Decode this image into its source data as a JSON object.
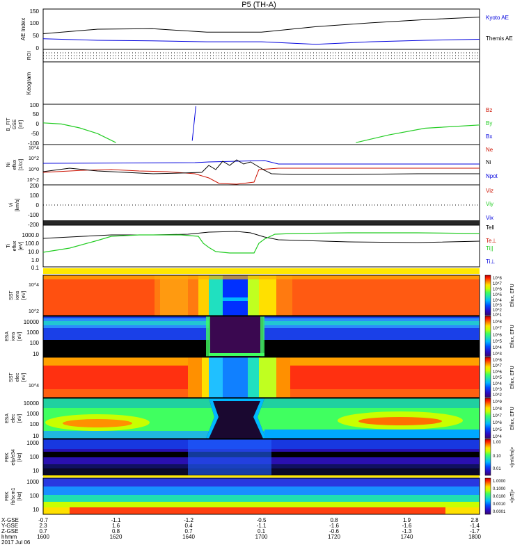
{
  "title": "P5 (TH-A)",
  "colors": {
    "black": "#000000",
    "blue": "#0000dd",
    "red": "#cc1100",
    "green": "#22cc22",
    "cbar": [
      "#3b0a6b",
      "#2a0cc9",
      "#0050ff",
      "#00b8ff",
      "#20e0b0",
      "#40ff60",
      "#c8ff00",
      "#ffe000",
      "#ff8000",
      "#ff2000",
      "#c00000"
    ]
  },
  "panels": {
    "ae": {
      "ylabel": "AE Index",
      "ticks": [
        "150",
        "100",
        "50",
        "0"
      ],
      "legend": [
        "Kyoto AE",
        "Themis AE"
      ]
    },
    "roi": {
      "ylabel": "ROI"
    },
    "keogram": {
      "ylabel": "Keogram"
    },
    "bfit": {
      "ylabel": [
        "B_FIT",
        "GSE",
        "[nT]"
      ],
      "ticks": [
        "100",
        "50",
        "0",
        "-50",
        "-100"
      ],
      "legend": [
        "Bz",
        "By",
        "Bx"
      ]
    },
    "density": {
      "ylabel": [
        "Ni",
        "eflux",
        "[1/cc]"
      ],
      "ticks": [
        "10^4",
        "10^2",
        "10^0",
        "10^-2"
      ],
      "legend": [
        "Ne",
        "Ni",
        "Npot"
      ]
    },
    "velocity": {
      "ylabel": [
        "Vi",
        "[km/s]"
      ],
      "ticks": [
        "200",
        "100",
        "0",
        "-100",
        "-200"
      ],
      "legend": [
        "Viz",
        "Viy",
        "Vix"
      ]
    },
    "temperature": {
      "ylabel": [
        "Ti",
        "eflux",
        "[eV]"
      ],
      "ticks": [
        "1000.0",
        "100.0",
        "10.0",
        "1.0",
        "0.1"
      ],
      "legend": [
        "Tell",
        "Te⊥",
        "Ti||",
        "Ti⊥"
      ]
    },
    "sst_i": {
      "ylabel": [
        "SST",
        "ions",
        "[eV]"
      ],
      "ticks": [
        "10^4",
        "10^2"
      ],
      "cbar_ticks": [
        "10^8",
        "10^7",
        "10^6",
        "10^5",
        "10^4",
        "10^3",
        "10^2",
        "10^1"
      ],
      "cbar_label": "Eflux, EFU"
    },
    "esa_i": {
      "ylabel": [
        "ESA",
        "ions",
        "[eV]"
      ],
      "ticks": [
        "10000",
        "1000",
        "100",
        "10"
      ],
      "cbar_ticks": [
        "10^8",
        "10^7",
        "10^6",
        "10^5",
        "10^4",
        "10^3"
      ],
      "cbar_label": "Eflux, EFU"
    },
    "sst_e": {
      "ylabel": [
        "SST",
        "elec",
        "[eV]"
      ],
      "ticks": [
        "10^4"
      ],
      "cbar_ticks": [
        "10^8",
        "10^7",
        "10^6",
        "10^5",
        "10^4",
        "10^3",
        "10^2"
      ],
      "cbar_label": "Eflux, EFU"
    },
    "esa_e": {
      "ylabel": [
        "ESA",
        "elec",
        "[eV]"
      ],
      "ticks": [
        "10000",
        "1000",
        "100",
        "10"
      ],
      "cbar_ticks": [
        "10^9",
        "10^8",
        "10^7",
        "10^6",
        "10^5",
        "10^4"
      ],
      "cbar_label": "Eflux, EFU"
    },
    "fbk_e": {
      "ylabel": [
        "FBK",
        "efp/e34",
        "[Hz]"
      ],
      "ticks": [
        "1000",
        "100",
        "10"
      ],
      "cbar_ticks": [
        "1.00",
        "0.10",
        "0.01"
      ],
      "cbar_label": "<|mV/m|>"
    },
    "fbk_b": {
      "ylabel": [
        "FBK",
        "fb/scm1",
        "[Hz]"
      ],
      "ticks": [
        "1000",
        "100",
        "10"
      ],
      "cbar_ticks": [
        "1.0000",
        "0.1000",
        "0.0100",
        "0.0010",
        "0.0001"
      ],
      "cbar_label": "<|nT|>"
    }
  },
  "axis": {
    "row_labels": [
      "X-GSE",
      "Y-GSE",
      "Z-GSE",
      "hhmm",
      "2017 Jul 06"
    ],
    "columns": [
      {
        "x": "-0.7",
        "y": "2.3",
        "z": "0.7",
        "t": "1600"
      },
      {
        "x": "-1.1",
        "y": "1.6",
        "z": "0.8",
        "t": "1620"
      },
      {
        "x": "-1.2",
        "y": "0.4",
        "z": "0.7",
        "t": "1640"
      },
      {
        "x": "-0.5",
        "y": "-1.1",
        "z": "0.1",
        "t": "1700"
      },
      {
        "x": "0.8",
        "y": "-1.6",
        "z": "-0.6",
        "t": "1720"
      },
      {
        "x": "1.9",
        "y": "-1.6",
        "z": "-1.3",
        "t": "1740"
      },
      {
        "x": "2.8",
        "y": "-1.4",
        "z": "-1.7",
        "t": "1800"
      }
    ]
  },
  "chart_data": {
    "type": "line",
    "x_unit": "hhmm",
    "x_range": [
      "1600",
      "1800"
    ],
    "series": [
      {
        "name": "Kyoto AE",
        "panel": "ae",
        "x": [
          1600,
          1615,
          1630,
          1645,
          1700,
          1715,
          1730,
          1745,
          1800
        ],
        "y": [
          62,
          80,
          82,
          68,
          68,
          90,
          105,
          118,
          128
        ]
      },
      {
        "name": "Themis AE",
        "panel": "ae",
        "x": [
          1600,
          1615,
          1630,
          1645,
          1700,
          1715,
          1730,
          1745,
          1800
        ],
        "y": [
          42,
          36,
          34,
          30,
          30,
          20,
          30,
          36,
          40
        ]
      },
      {
        "name": "By",
        "panel": "bfit",
        "x": [
          1600,
          1605,
          1610,
          1615,
          1620
        ],
        "y": [
          8,
          2,
          -18,
          -48,
          -95
        ]
      },
      {
        "name": "By",
        "panel": "bfit",
        "x": [
          1726,
          1735,
          1745,
          1760,
          1800
        ],
        "y": [
          -95,
          -55,
          -20,
          -3,
          0
        ]
      },
      {
        "name": "Bx",
        "panel": "bfit",
        "x": [
          1641,
          1642
        ],
        "y": [
          -85,
          95
        ]
      }
    ]
  }
}
